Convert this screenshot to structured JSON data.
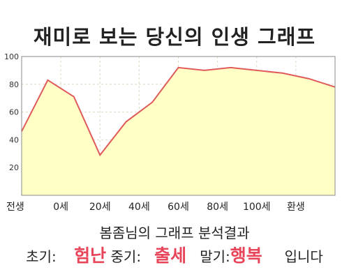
{
  "title": "재미로 보는 당신의 인생 그래프",
  "chart_data": {
    "type": "area",
    "x": [
      0,
      1,
      2,
      3,
      4,
      5,
      6,
      7,
      8,
      9,
      10,
      11,
      12
    ],
    "y": [
      46,
      83,
      71,
      29,
      53,
      67,
      92,
      90,
      92,
      90,
      88,
      84,
      78
    ],
    "x_tick_positions": [
      0,
      1.5,
      3,
      4.5,
      6,
      7.5,
      9,
      10.5,
      12
    ],
    "x_tick_labels": [
      "전생",
      "0세",
      "20세",
      "40세",
      "60세",
      "80세",
      "100세",
      "환생",
      ""
    ],
    "ylim": [
      0,
      100
    ],
    "y_ticks": [
      20,
      40,
      60,
      80,
      100
    ],
    "grid": true,
    "line_color": "#e05a5a",
    "fill_color": "#ffffc6",
    "title": "재미로 보는 당신의 인생 그래프",
    "xlabel": "",
    "ylabel": ""
  },
  "analysis": {
    "title": "봄좀님의 그래프 분석결과",
    "early_label": "초기:",
    "early_value": "험난",
    "mid_label": "중기:",
    "mid_value": "출세",
    "late_label": "말기:",
    "late_value": "행복",
    "suffix": "입니다"
  }
}
